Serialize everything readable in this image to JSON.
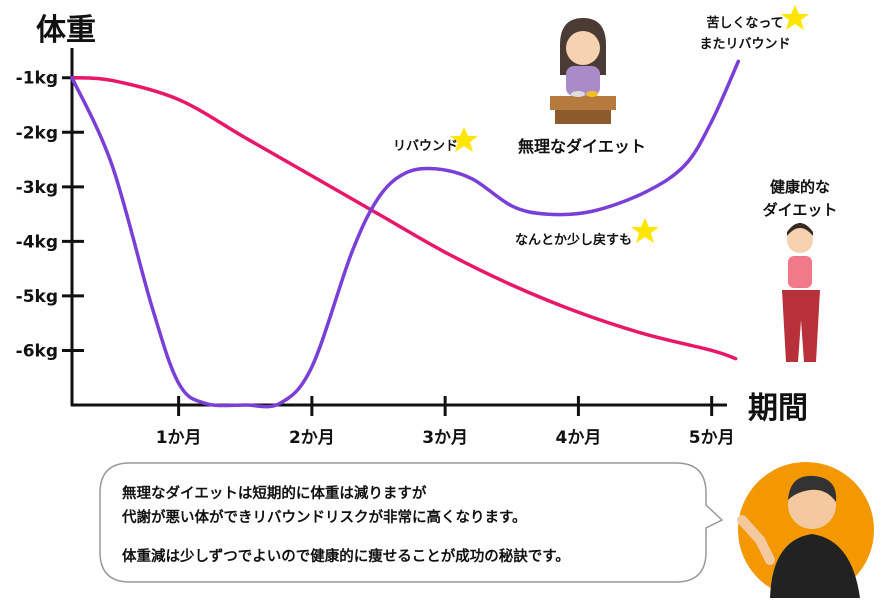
{
  "chart_data": {
    "type": "line",
    "title": "体重",
    "x_label": "期間",
    "xlim": [
      0.2,
      5.1
    ],
    "ylim": [
      -7,
      -0.4
    ],
    "xticks": [
      {
        "value": 1,
        "label": "1か月"
      },
      {
        "value": 2,
        "label": "2か月"
      },
      {
        "value": 3,
        "label": "3か月"
      },
      {
        "value": 4,
        "label": "4か月"
      },
      {
        "value": 5,
        "label": "5か月"
      }
    ],
    "yticks": [
      {
        "value": -1,
        "label": "-1kg"
      },
      {
        "value": -2,
        "label": "-2kg"
      },
      {
        "value": -3,
        "label": "-3kg"
      },
      {
        "value": -4,
        "label": "-4kg"
      },
      {
        "value": -5,
        "label": "-5kg"
      },
      {
        "value": -6,
        "label": "-6kg"
      }
    ],
    "series": [
      {
        "color": "#e8176a",
        "x": [
          0.2,
          0.5,
          1,
          1.5,
          2,
          2.5,
          3,
          3.5,
          4,
          4.5,
          5,
          5.18
        ],
        "values": [
          -1,
          -1.05,
          -1.4,
          -2.1,
          -2.8,
          -3.5,
          -4.2,
          -4.8,
          -5.3,
          -5.7,
          -6.0,
          -6.15
        ]
      },
      {
        "color": "#7a3fd6",
        "x": [
          0.2,
          0.5,
          0.8,
          1.0,
          1.2,
          1.5,
          1.76,
          2.0,
          2.3,
          2.5,
          2.7,
          2.93,
          3.2,
          3.5,
          3.76,
          4.1,
          4.5,
          4.8,
          5.0,
          5.2
        ],
        "values": [
          -1,
          -2.6,
          -5.2,
          -6.6,
          -6.97,
          -7,
          -6.97,
          -6.3,
          -4.2,
          -3.2,
          -2.75,
          -2.67,
          -2.85,
          -3.35,
          -3.5,
          -3.45,
          -3.1,
          -2.6,
          -1.8,
          -0.7
        ]
      }
    ],
    "annotations": {
      "rebound": "リバウンド",
      "extreme_diet": "無理なダイエット",
      "rebound_again": [
        "苦しくなって",
        "またリバウンド"
      ],
      "slight_recovery": "なんとか少し戻すも",
      "healthy_diet": [
        "健康的な",
        "ダイエット"
      ]
    },
    "speech_bubble": [
      "無理なダイエットは短期的に体重は減りますが",
      "代謝が悪い体ができリバウンドリスクが非常に高くなります。",
      "体重減は少しずつでよいので健康的に痩せることが成功の秘訣です。"
    ]
  }
}
